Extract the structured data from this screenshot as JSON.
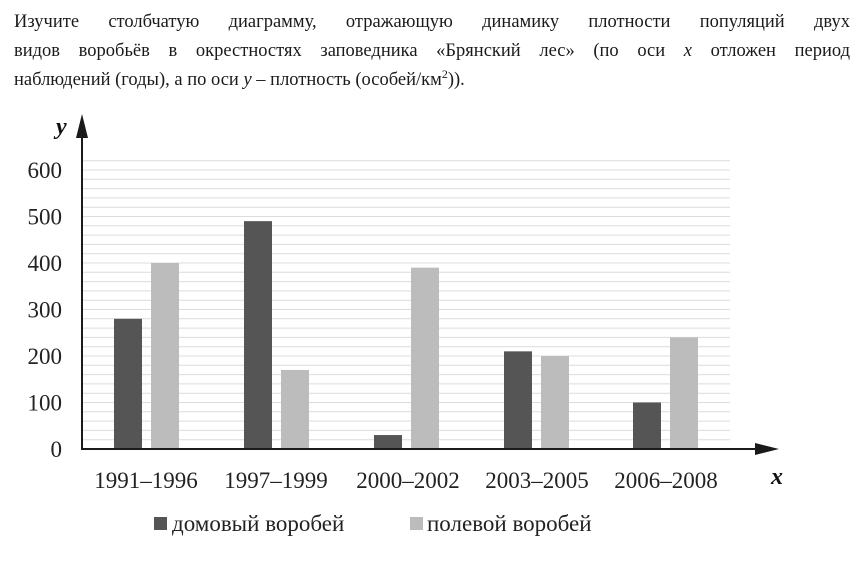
{
  "question": {
    "line1": "Изучите столбчатую диаграмму, отражающую динамику плотности популяций двух",
    "line2_a": "видов воробьёв в окрестностях заповедника «Брянский лес» (по оси ",
    "line2_x": "x",
    "line2_b": " отложен период",
    "line3_a": "наблюдений (годы), а по оси ",
    "line3_y": "y",
    "line3_b": " – плотность (особей/км",
    "line3_sup": "2",
    "line3_c": "))."
  },
  "colors": {
    "series_dark": "#555555",
    "series_light": "#bcbcbc",
    "grid": "#dcdcdc",
    "axis": "#1a1a1a"
  },
  "chart_data": {
    "type": "bar",
    "xlabel": "x",
    "ylabel": "y",
    "ylim": [
      0,
      600
    ],
    "yticks": [
      0,
      100,
      200,
      300,
      400,
      500,
      600
    ],
    "grid": true,
    "legend_position": "bottom",
    "categories": [
      "1991–1996",
      "1997–1999",
      "2000–2002",
      "2003–2005",
      "2006–2008"
    ],
    "series": [
      {
        "name": "домовый воробей",
        "values": [
          280,
          490,
          30,
          210,
          100
        ]
      },
      {
        "name": "полевой воробей",
        "values": [
          400,
          170,
          390,
          200,
          240
        ]
      }
    ]
  }
}
